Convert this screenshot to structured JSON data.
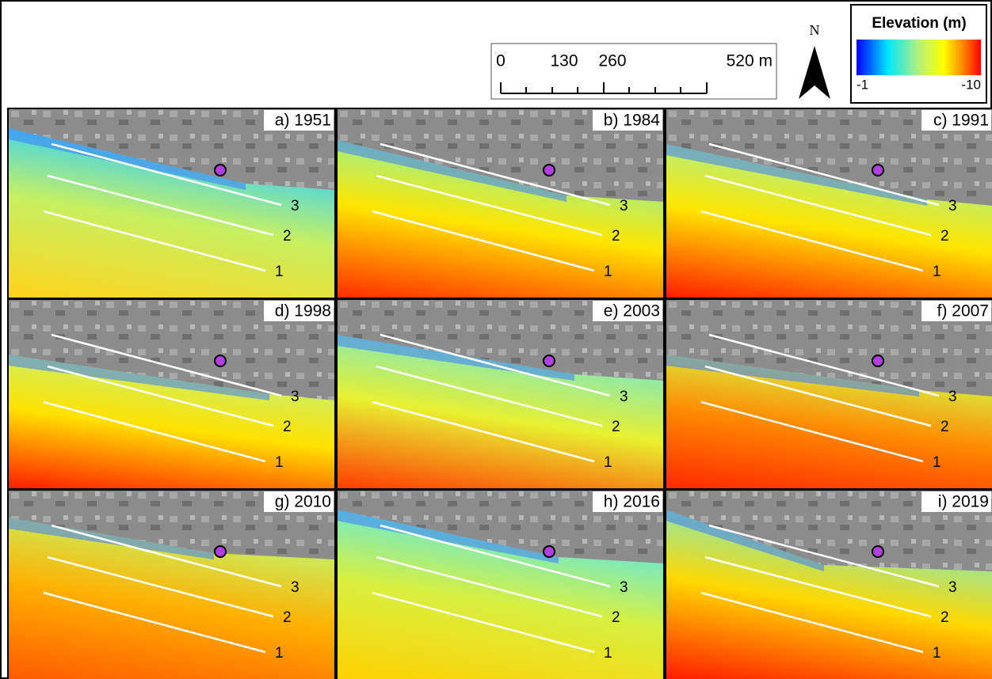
{
  "scale_bar": {
    "labels": [
      "0",
      "130",
      "260",
      "520 m"
    ]
  },
  "north_arrow": {
    "label": "N"
  },
  "legend": {
    "title": "Elevation (m)",
    "min_label": "-1",
    "max_label": "-10"
  },
  "transect_labels": [
    "1",
    "2",
    "3"
  ],
  "panels": [
    {
      "label": "a) 1951"
    },
    {
      "label": "b) 1984"
    },
    {
      "label": "c) 1991"
    },
    {
      "label": "d) 1998"
    },
    {
      "label": "e) 2003"
    },
    {
      "label": "f) 2007"
    },
    {
      "label": "g) 2010"
    },
    {
      "label": "h) 2016"
    },
    {
      "label": "i) 2019"
    }
  ]
}
